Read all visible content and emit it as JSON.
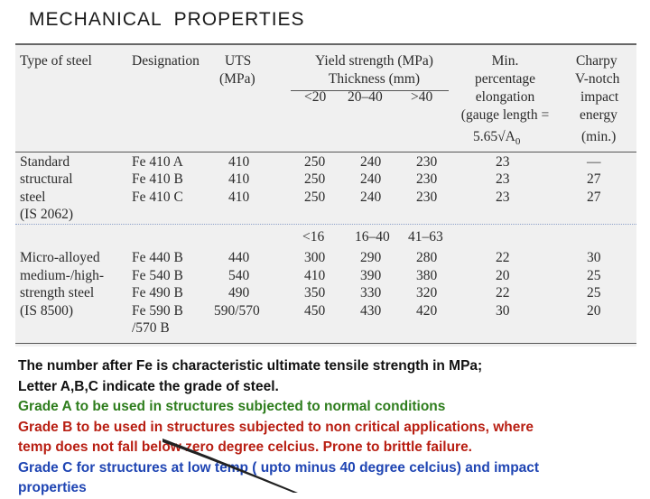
{
  "title": "MECHANICAL  PROPERTIES",
  "table": {
    "headers": {
      "type": "Type of steel",
      "designation": "Designation",
      "uts": [
        "UTS",
        "(MPa)"
      ],
      "yield": [
        "Yield strength (MPa)",
        "Thickness (mm)"
      ],
      "elong": [
        "Min.",
        "percentage",
        "elongation",
        "(gauge length =",
        "5.65√A",
        "0"
      ],
      "charpy": [
        "Charpy",
        "V-notch",
        "impact",
        "energy",
        "(min.)"
      ]
    },
    "thickness_ranges_1": [
      "<20",
      "20–40",
      ">40"
    ],
    "thickness_ranges_2": [
      "<16",
      "16–40",
      "41–63"
    ],
    "group1": {
      "type_lines": [
        "Standard",
        "structural",
        "steel",
        "(IS 2062)"
      ],
      "rows": [
        {
          "designation": "Fe 410 A",
          "uts": "410",
          "y1": "250",
          "y2": "240",
          "y3": "230",
          "elong": "23",
          "charpy": "—"
        },
        {
          "designation": "Fe 410 B",
          "uts": "410",
          "y1": "250",
          "y2": "240",
          "y3": "230",
          "elong": "23",
          "charpy": "27"
        },
        {
          "designation": "Fe 410 C",
          "uts": "410",
          "y1": "250",
          "y2": "240",
          "y3": "230",
          "elong": "23",
          "charpy": "27"
        }
      ]
    },
    "group2": {
      "type_lines": [
        "Micro-alloyed",
        "medium-/high-",
        "strength steel",
        "(IS 8500)"
      ],
      "rows": [
        {
          "designation": "Fe 440 B",
          "uts": "440",
          "y1": "300",
          "y2": "290",
          "y3": "280",
          "elong": "22",
          "charpy": "30"
        },
        {
          "designation": "Fe 540 B",
          "uts": "540",
          "y1": "410",
          "y2": "390",
          "y3": "380",
          "elong": "20",
          "charpy": "25"
        },
        {
          "designation": "Fe 490 B",
          "uts": "490",
          "y1": "350",
          "y2": "330",
          "y3": "320",
          "elong": "22",
          "charpy": "25"
        },
        {
          "designation": "Fe 590 B",
          "uts": "590/570",
          "y1": "450",
          "y2": "430",
          "y3": "420",
          "elong": "30",
          "charpy": "20"
        }
      ],
      "extra_designation": "/570 B"
    }
  },
  "notes": [
    {
      "text": "The number after Fe is characteristic ultimate tensile strength in MPa;",
      "color": "#111111"
    },
    {
      "text": " Letter A,B,C indicate the grade of steel.",
      "color": "#111111"
    },
    {
      "text": "Grade A to be used in structures subjected to normal conditions",
      "color": "#2e7d1d"
    },
    {
      "text": "Grade B to be used in structures subjected to non critical applications, where",
      "color": "#b81e12"
    },
    {
      "text": "temp does not fall below zero degree celcius. Prone to brittle failure.",
      "color": "#b81e12"
    },
    {
      "text": "Grade C for structures at low temp ( upto minus 40 degree celcius) and impact",
      "color": "#1f45b3"
    },
    {
      "text": "properties",
      "color": "#1f45b3"
    }
  ]
}
